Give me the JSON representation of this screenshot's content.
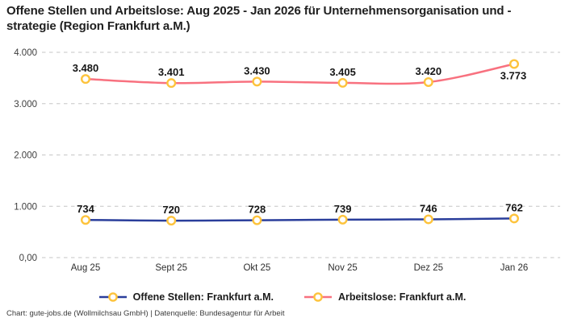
{
  "title": "Offene Stellen und Arbeitslose: Aug 2025 - Jan 2026 für Unternehmensorganisation und -strategie (Region Frankfurt a.M.)",
  "footer": "Chart: gute-jobs.de (Wollmilchsau GmbH) | Datenquelle: Bundesagentur für Arbeit",
  "colors": {
    "offene_stellen_line": "#2a3e9b",
    "arbeitslose_line": "#f8717f",
    "marker_ring": "#fdc33c",
    "marker_fill": "#ffffff",
    "gridline": "#c6c6c6",
    "axis_text": "#3d3d3d",
    "data_label": "#161616"
  },
  "chart_data": {
    "type": "line",
    "title": "Offene Stellen und Arbeitslose: Aug 2025 - Jan 2026 für Unternehmensorganisation und -strategie (Region Frankfurt a.M.)",
    "categories": [
      "Aug 25",
      "Sept 25",
      "Okt 25",
      "Nov 25",
      "Dez 25",
      "Jan 26"
    ],
    "series": [
      {
        "name": "Offene Stellen: Frankfurt a.M.",
        "values": [
          734,
          720,
          728,
          739,
          746,
          762
        ],
        "labels": [
          "734",
          "720",
          "728",
          "739",
          "746",
          "762"
        ],
        "color": "#2a3e9b"
      },
      {
        "name": "Arbeitslose: Frankfurt a.M.",
        "values": [
          3480,
          3401,
          3430,
          3405,
          3420,
          3773
        ],
        "labels": [
          "3.480",
          "3.401",
          "3.430",
          "3.405",
          "3.420",
          "3.773"
        ],
        "color": "#f8717f"
      }
    ],
    "y_ticks": [
      {
        "value": 0,
        "label": "0,00"
      },
      {
        "value": 1000,
        "label": "1.000"
      },
      {
        "value": 2000,
        "label": "2.000"
      },
      {
        "value": 3000,
        "label": "3.000"
      },
      {
        "value": 4000,
        "label": "4.000"
      }
    ],
    "ylim": [
      0,
      4000
    ],
    "xlabel": "",
    "ylabel": "",
    "grid": "horizontal-dashed",
    "legend_position": "bottom",
    "marker": {
      "shape": "ring",
      "stroke": "#fdc33c",
      "fill": "#ffffff"
    }
  }
}
